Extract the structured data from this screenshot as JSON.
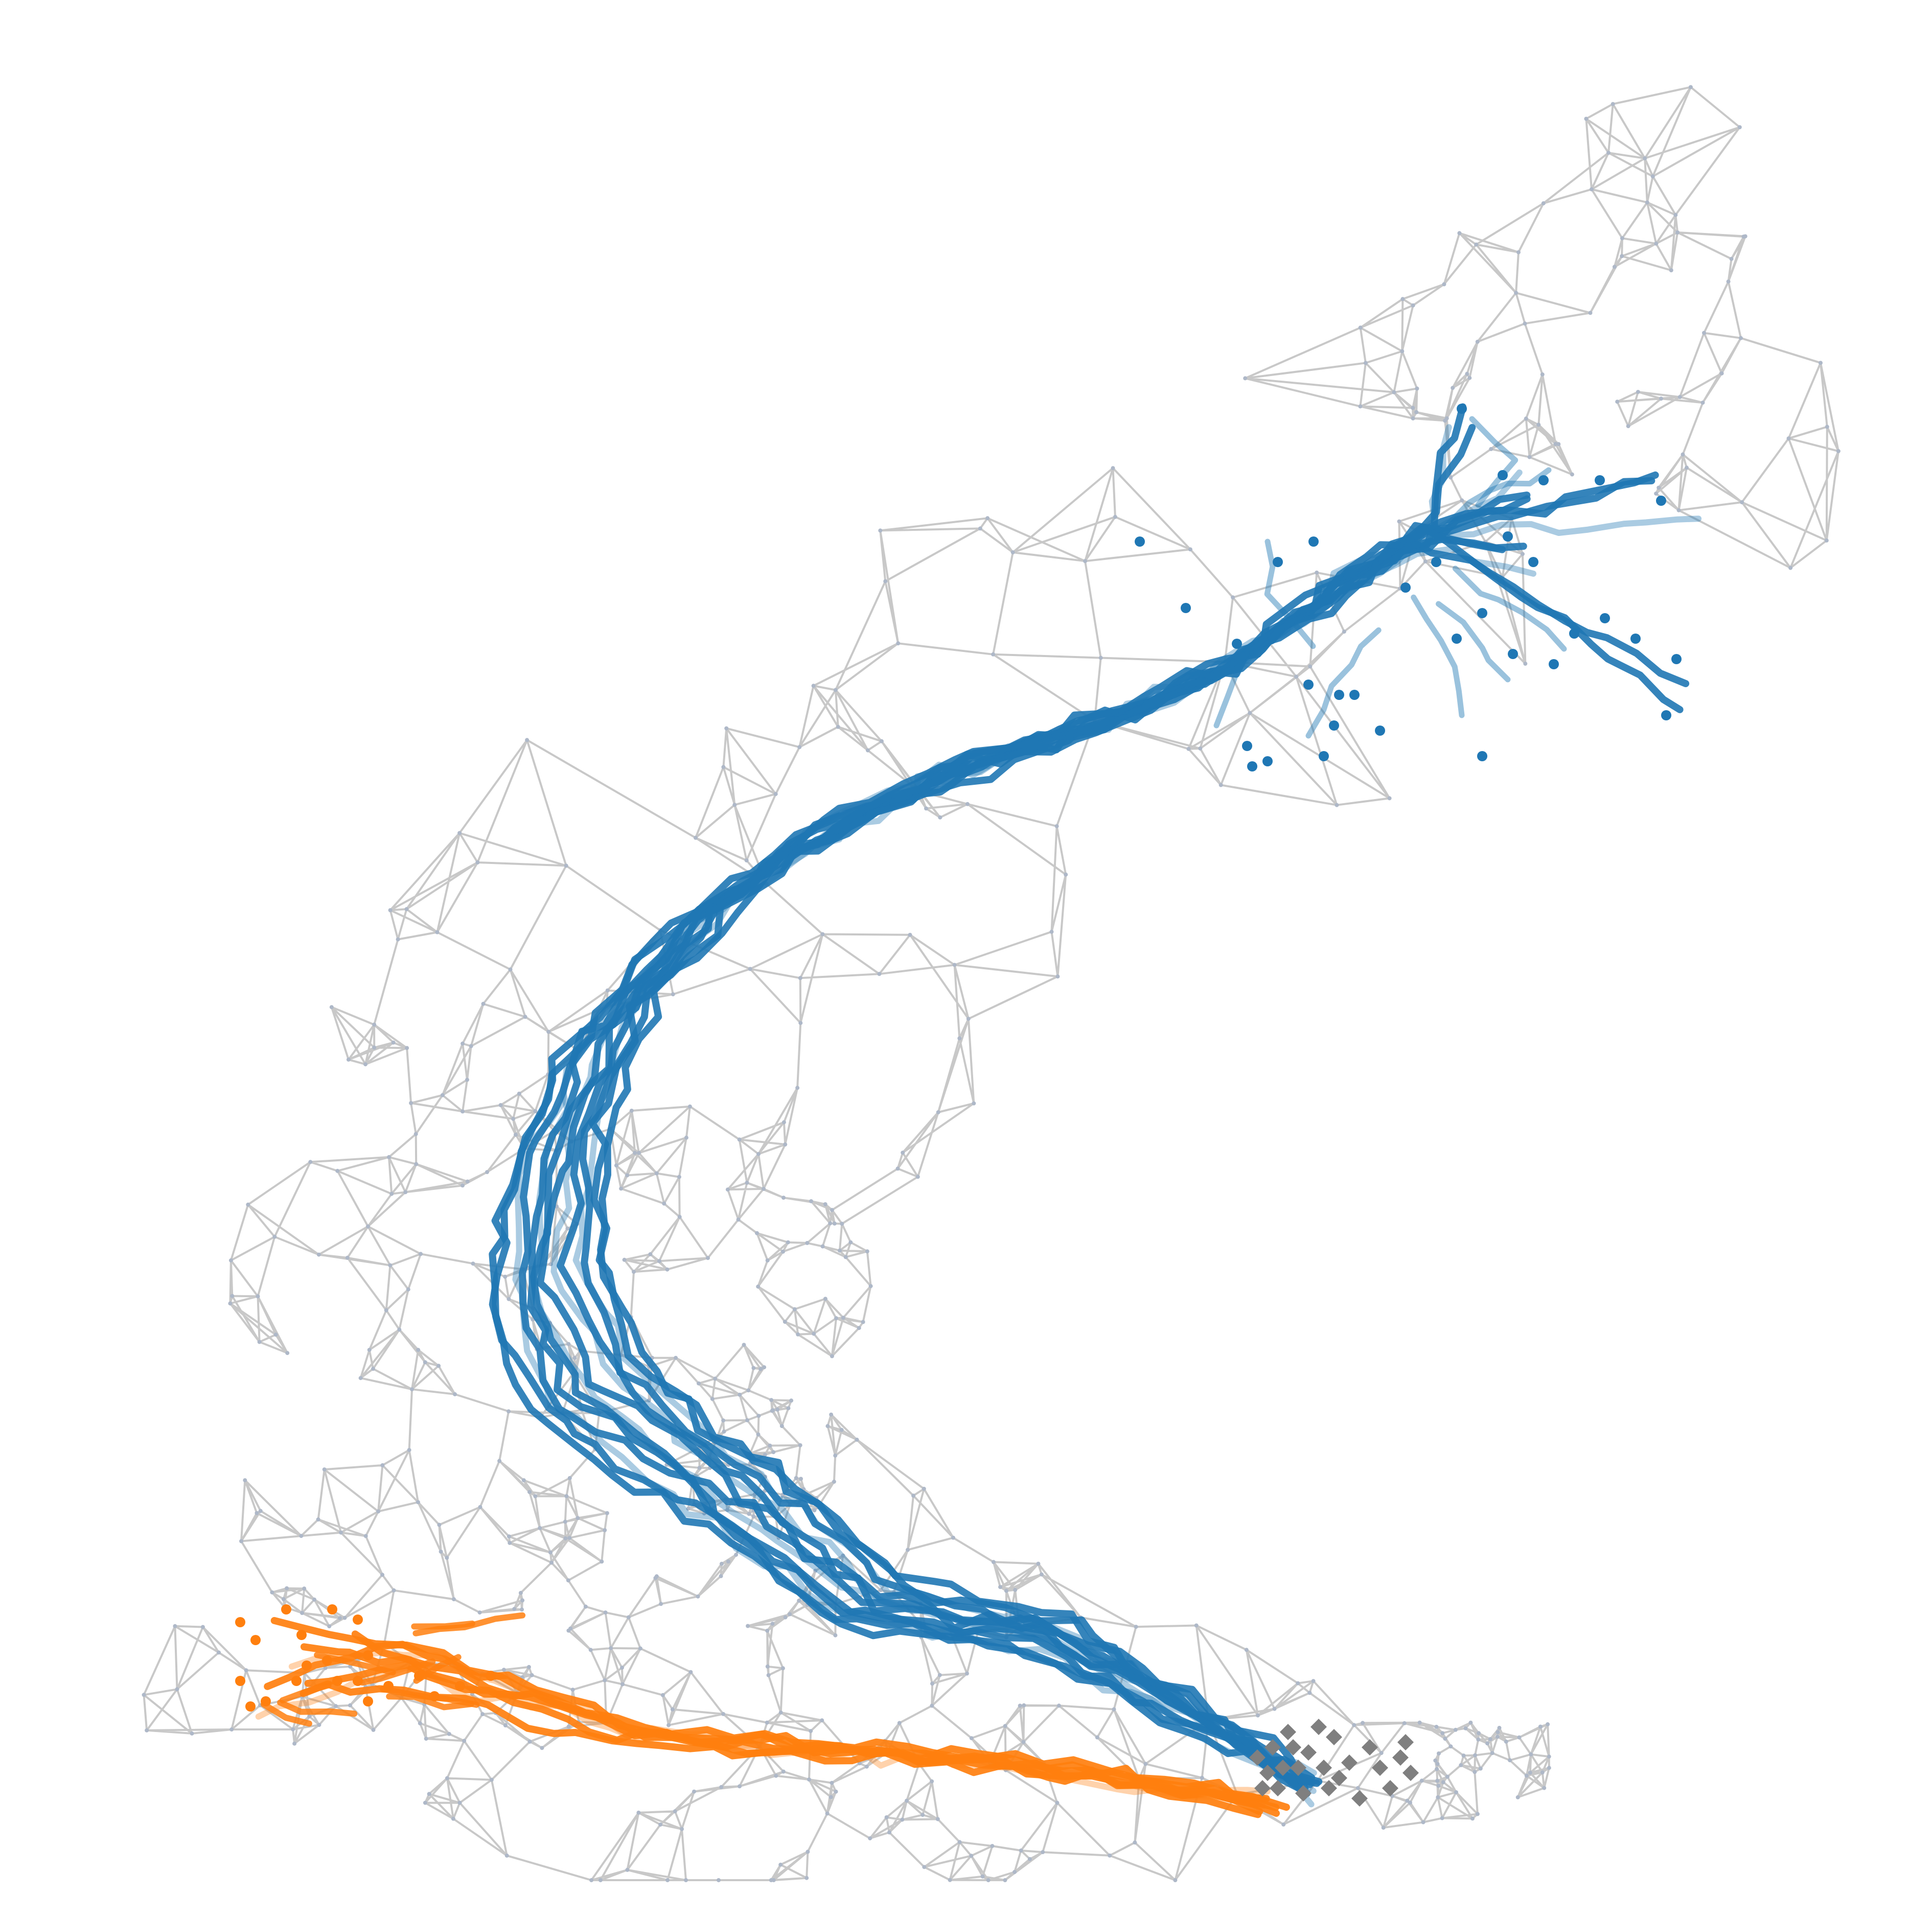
{
  "diagram": {
    "kind": "knn-graph-trajectories",
    "title": "",
    "colors": {
      "background": "#ffffff",
      "graph_edge": "#c8c8c8",
      "graph_node": "#aeb8c8",
      "branch_a": "#1f77b4",
      "branch_b": "#ff7f0e",
      "root": "#7f7f7f"
    },
    "legend": [],
    "groups": [
      {
        "id": "graph",
        "label": ""
      },
      {
        "id": "branch-a-paths",
        "label": ""
      },
      {
        "id": "branch-b-paths",
        "label": ""
      },
      {
        "id": "root-cells",
        "label": ""
      }
    ]
  }
}
